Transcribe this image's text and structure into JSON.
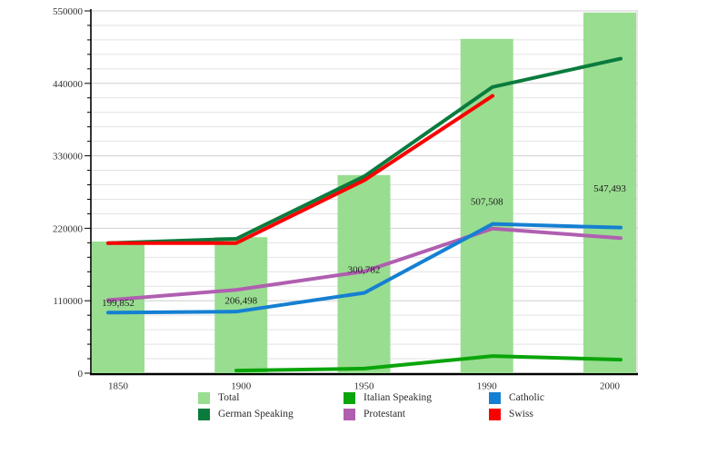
{
  "chart_data": {
    "type": "bar",
    "subtype": "bar-and-line combo, category x-axis",
    "title": "",
    "xlabel": "",
    "ylabel": "",
    "categories": [
      "1850",
      "1900",
      "1950",
      "1990",
      "2000"
    ],
    "y_axis": {
      "min": 0,
      "max": 550000,
      "major_step": 110000,
      "minor_step": 22000,
      "tick_labels": [
        "0",
        "110000",
        "220000",
        "330000",
        "440000",
        "550000"
      ],
      "grid": "horizontal light-gray lines at every minor step"
    },
    "bars": {
      "name": "Total",
      "color": "#99DD90",
      "values": [
        199852,
        206498,
        300782,
        507508,
        547493
      ],
      "value_labels": [
        "199,852",
        "206,498",
        "300,782",
        "507,508",
        "547,493"
      ]
    },
    "series": [
      {
        "name": "German Speaking",
        "color": "#0A7B3D",
        "values": [
          197500,
          204000,
          299000,
          434500,
          477500
        ]
      },
      {
        "name": "Italian Speaking",
        "color": "#0AA50A",
        "values": [
          null,
          4000,
          7000,
          26000,
          20500
        ]
      },
      {
        "name": "Protestant",
        "color": "#B05FB0",
        "values": [
          111000,
          126500,
          154500,
          219500,
          205000
        ]
      },
      {
        "name": "Catholic",
        "color": "#1580D2",
        "values": [
          92000,
          93500,
          122000,
          226500,
          221000
        ]
      },
      {
        "name": "Swiss",
        "color": "#FA0000",
        "values": [
          197500,
          197500,
          293000,
          421000,
          null
        ]
      }
    ],
    "legend": {
      "position": "bottom",
      "items": [
        {
          "label": "Total",
          "color": "#99DD90"
        },
        {
          "label": "German Speaking",
          "color": "#0A7B3D"
        },
        {
          "label": "Italian Speaking",
          "color": "#0AA50A"
        },
        {
          "label": "Protestant",
          "color": "#B05FB0"
        },
        {
          "label": "Catholic",
          "color": "#1580D2"
        },
        {
          "label": "Swiss",
          "color": "#FA0000"
        }
      ]
    },
    "colors": {
      "grid_minor": "#E2E2E2",
      "grid_major": "#CFCFCF",
      "axis": "#000000",
      "text": "#303030"
    }
  }
}
